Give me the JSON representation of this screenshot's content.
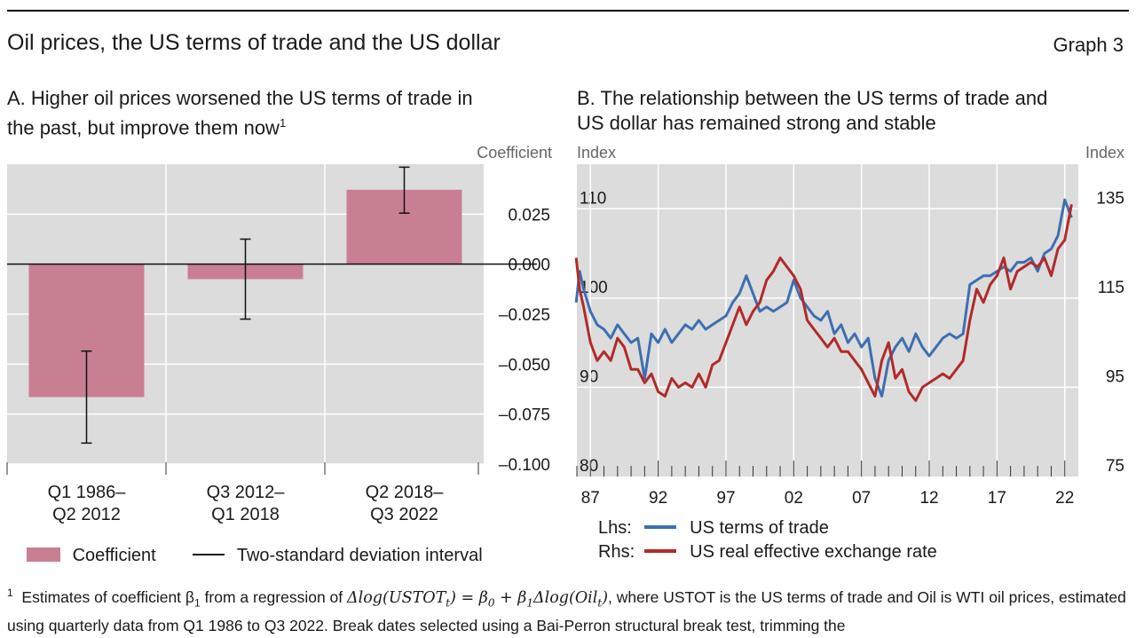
{
  "header": {
    "title": "Oil prices, the US terms of trade and the US dollar",
    "graph_number": "Graph 3"
  },
  "panel_a": {
    "title_line1": "A. Higher oil prices worsened the US terms of trade in",
    "title_line2": "the past, but improve them now",
    "footnote_mark": "1",
    "legend_coefficient": "Coefficient",
    "legend_interval": "Two-standard deviation interval"
  },
  "panel_b": {
    "title_line1": "B. The relationship between the US terms of trade and",
    "title_line2": "US dollar has remained strong and stable",
    "legend_lhs_prefix": "Lhs:",
    "legend_rhs_prefix": "Rhs:",
    "legend_lhs": "US terms of trade",
    "legend_rhs": "US real effective exchange rate"
  },
  "footnote": {
    "mark": "1",
    "text_before": "Estimates of coefficient β",
    "sub1": "1",
    "text_from": " from a regression of ",
    "equation": "Δlog(USTOT",
    "sub_t": "t",
    "equation2": ") = β",
    "sub0": "0",
    "equation3": " + β",
    "sub1b": "1",
    "equation4": "Δlog(Oil",
    "sub_t2": "t",
    "equation5": ")",
    "text_after": ", where USTOT is the US terms of trade and Oil is WTI oil prices, estimated using quarterly data from Q1 1986 to Q3 2022. Break dates selected using a Bai-Perron structural break test, trimming the"
  },
  "chart_data": [
    {
      "type": "bar",
      "title": "A. Higher oil prices worsened the US terms of trade in the past, but improve them now",
      "ylabel": "Coefficient",
      "categories": [
        "Q1 1986–\nQ2 2012",
        "Q3 2012–\nQ1 2018",
        "Q2 2018–\nQ3 2022"
      ],
      "category_lines": [
        [
          "Q1 1986–",
          "Q2 2012"
        ],
        [
          "Q3 2012–",
          "Q1 2018"
        ],
        [
          "Q2 2018–",
          "Q3 2022"
        ]
      ],
      "series": [
        {
          "name": "Coefficient",
          "values": [
            -0.0665,
            -0.0075,
            0.0372
          ],
          "color": "#c87f91"
        }
      ],
      "error_bars": {
        "name": "Two-standard deviation interval",
        "low": [
          -0.0895,
          -0.0275,
          0.0255
        ],
        "high": [
          -0.0435,
          0.0125,
          0.0485
        ]
      },
      "ylim": [
        -0.1,
        0.05
      ],
      "yticks": [
        -0.1,
        -0.075,
        -0.05,
        -0.025,
        0,
        0.025
      ],
      "ytick_labels": [
        "–0.100",
        "–0.075",
        "–0.050",
        "–0.025",
        "0.000",
        "0.025"
      ],
      "grid": true,
      "legend": "bottom"
    },
    {
      "type": "line",
      "title": "B. The relationship between the US terms of trade and US dollar has remained strong and stable",
      "ylabel_left": "Index",
      "ylabel_right": "Index",
      "x_tick_labels": [
        "87",
        "92",
        "97",
        "02",
        "07",
        "12",
        "17",
        "22"
      ],
      "x_tick_values": [
        1987,
        1992,
        1997,
        2002,
        2007,
        2012,
        2017,
        2022
      ],
      "xlim": [
        1986,
        2023
      ],
      "ylim_left": [
        80,
        115
      ],
      "ylim_right": [
        75,
        145
      ],
      "yticks_left": [
        80,
        90,
        100,
        110
      ],
      "yticks_right": [
        75,
        95,
        115,
        135
      ],
      "grid": true,
      "legend": "bottom",
      "series": [
        {
          "name": "US terms of trade",
          "axis": "left",
          "color": "#3d6fb0",
          "x": [
            1985.95,
            1986.2,
            1986.5,
            1987,
            1987.5,
            1988,
            1988.5,
            1989,
            1989.5,
            1990,
            1990.5,
            1991,
            1991.5,
            1992,
            1992.5,
            1993,
            1993.5,
            1994,
            1994.5,
            1995,
            1995.5,
            1996,
            1996.5,
            1997,
            1997.5,
            1998,
            1998.5,
            1999,
            1999.5,
            2000,
            2000.5,
            2001,
            2001.5,
            2002,
            2002.5,
            2003,
            2003.5,
            2004,
            2004.5,
            2005,
            2005.5,
            2006,
            2006.5,
            2007,
            2007.5,
            2008,
            2008.5,
            2009,
            2009.5,
            2010,
            2010.5,
            2011,
            2011.5,
            2012,
            2012.5,
            2013,
            2013.5,
            2014,
            2014.5,
            2015,
            2015.5,
            2016,
            2016.5,
            2017,
            2017.5,
            2018,
            2018.5,
            2019,
            2019.5,
            2020,
            2020.5,
            2021,
            2021.5,
            2022,
            2022.5
          ],
          "y": [
            99.5,
            103,
            101,
            98.5,
            97,
            96.5,
            95.5,
            97,
            96,
            95,
            95.5,
            91,
            96,
            95,
            96.5,
            95,
            96,
            97,
            96.5,
            97.5,
            96.5,
            97,
            97.5,
            98,
            99.5,
            100.5,
            102.5,
            100.5,
            98.5,
            99,
            98.5,
            99,
            99.5,
            102,
            100,
            99,
            98,
            97.5,
            98.5,
            96,
            97,
            95,
            96,
            94.5,
            95.5,
            91,
            89,
            93,
            94.5,
            95.5,
            94,
            96,
            94.5,
            93.5,
            94.5,
            95.5,
            96,
            95.5,
            96,
            101.5,
            102,
            102.5,
            102.5,
            103,
            103.5,
            103,
            104,
            104,
            104.5,
            103,
            105,
            105.5,
            107,
            111,
            109
          ]
        },
        {
          "name": "US real effective exchange rate",
          "axis": "right",
          "color": "#b22a2a",
          "x": [
            1985.95,
            1986.2,
            1986.5,
            1987,
            1987.5,
            1988,
            1988.5,
            1989,
            1989.5,
            1990,
            1990.5,
            1991,
            1991.5,
            1992,
            1992.5,
            1993,
            1993.5,
            1994,
            1994.5,
            1995,
            1995.5,
            1996,
            1996.5,
            1997,
            1997.5,
            1998,
            1998.5,
            1999,
            1999.5,
            2000,
            2000.5,
            2001,
            2001.5,
            2002,
            2002.5,
            2003,
            2003.5,
            2004,
            2004.5,
            2005,
            2005.5,
            2006,
            2006.5,
            2007,
            2007.5,
            2008,
            2008.5,
            2009,
            2009.5,
            2010,
            2010.5,
            2011,
            2011.5,
            2012,
            2012.5,
            2013,
            2013.5,
            2014,
            2014.5,
            2015,
            2015.5,
            2016,
            2016.5,
            2017,
            2017.5,
            2018,
            2018.5,
            2019,
            2019.5,
            2020,
            2020.5,
            2021,
            2021.5,
            2022,
            2022.5
          ],
          "y": [
            124,
            117,
            113,
            105,
            101,
            103,
            101,
            106,
            104,
            99,
            99,
            96,
            98,
            94,
            93,
            97,
            95,
            96,
            95,
            98,
            95,
            100,
            101,
            105,
            109,
            113,
            109,
            112,
            114,
            119,
            121,
            124,
            122,
            120,
            117,
            110,
            108,
            106,
            104,
            106,
            103,
            103,
            101,
            99,
            96,
            93,
            101,
            105,
            97,
            99,
            94,
            92,
            95,
            96,
            97,
            98,
            97,
            99,
            101,
            110,
            117,
            114,
            118,
            120,
            124,
            117,
            121,
            122,
            123,
            122,
            124,
            120,
            126,
            128,
            136
          ]
        }
      ]
    }
  ]
}
